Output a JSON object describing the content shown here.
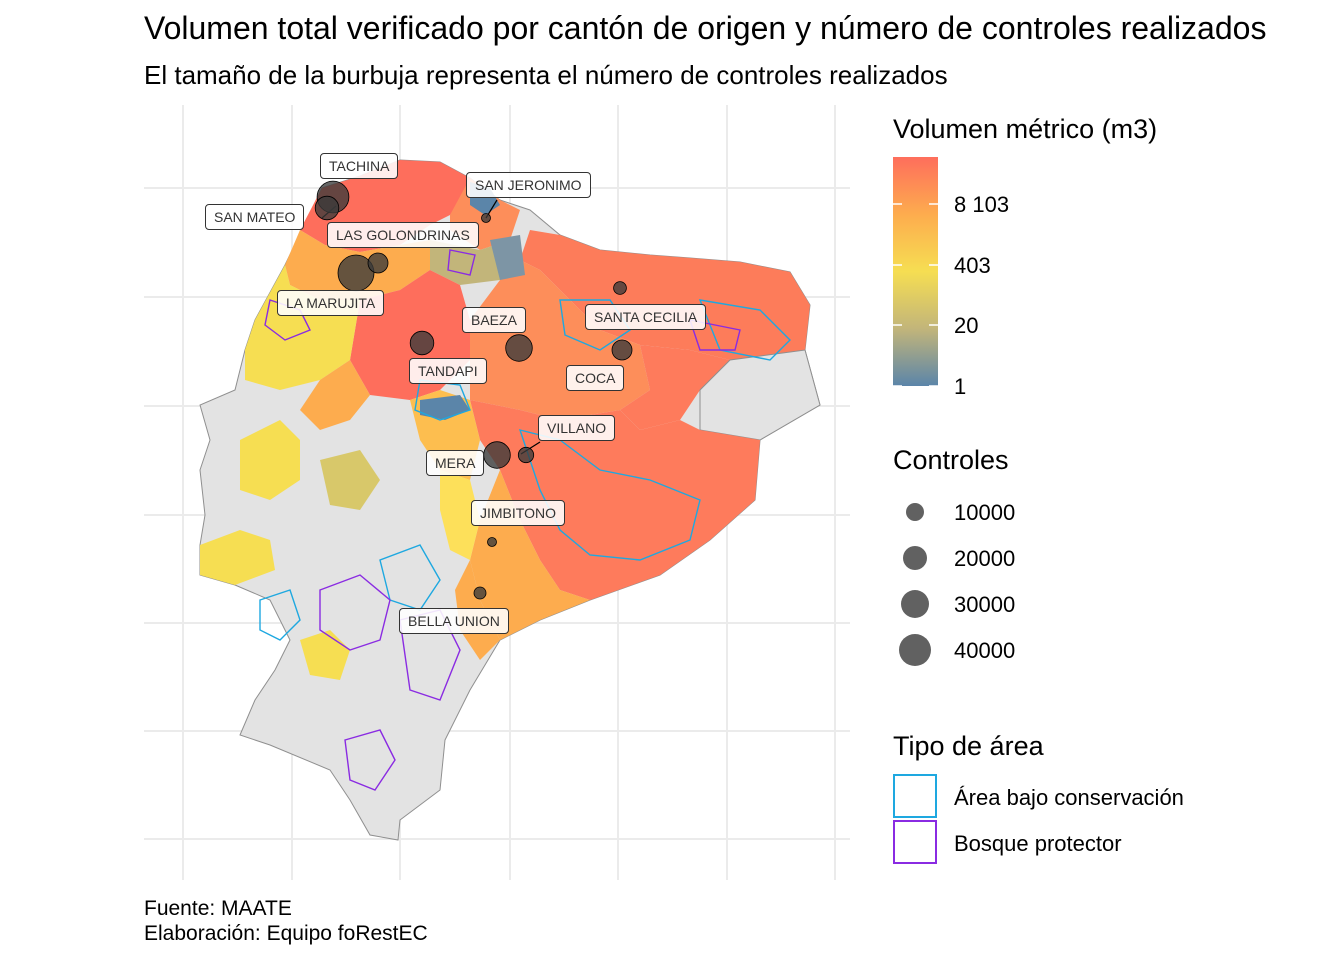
{
  "header": {
    "title": "Volumen total verificado por cantón de origen y número de controles realizados",
    "subtitle": "El tamaño de la burbuja representa el número de controles realizados"
  },
  "caption": {
    "source": "Fuente: MAATE",
    "author": "Elaboración: Equipo foRestEC"
  },
  "map": {
    "country": "Ecuador (continental)",
    "colors": {
      "no_data": "#e3e3e3",
      "background_grid": "#ebebeb",
      "bubble": "#3a3a3a",
      "conservation_border": "#1ea8e0",
      "protector_border": "#8a2be2"
    },
    "locations": [
      {
        "name": "TACHINA",
        "controles": 30000
      },
      {
        "name": "SAN MATEO",
        "controles": 15000
      },
      {
        "name": "SAN JERONIMO",
        "controles": 1000
      },
      {
        "name": "LAS GOLONDRINAS",
        "controles": 40000
      },
      {
        "name": "LA MARUJITA",
        "controles": 10000
      },
      {
        "name": "BAEZA",
        "controles": 20000
      },
      {
        "name": "SANTA CECILIA",
        "controles": 3000
      },
      {
        "name": "TANDAPI",
        "controles": 15000
      },
      {
        "name": "COCA",
        "controles": 10000
      },
      {
        "name": "VILLANO",
        "controles": 5000
      },
      {
        "name": "MERA",
        "controles": 20000
      },
      {
        "name": "JIMBITONO",
        "controles": 1000
      },
      {
        "name": "BELLA UNION",
        "controles": 2500
      }
    ]
  },
  "legend_volume": {
    "title": "Volumen métrico (m3)",
    "scale": "log",
    "colors": [
      "#5b85a9",
      "#c2b57a",
      "#f6de52",
      "#fdac4e",
      "#fe6e5c"
    ],
    "ticks": [
      "8 103",
      "403",
      "20",
      "1"
    ]
  },
  "legend_controls": {
    "title": "Controles",
    "items": [
      {
        "label": "10000",
        "value": 10000
      },
      {
        "label": "20000",
        "value": 20000
      },
      {
        "label": "30000",
        "value": 30000
      },
      {
        "label": "40000",
        "value": 40000
      }
    ]
  },
  "legend_area": {
    "title": "Tipo de área",
    "items": [
      {
        "label": "Área bajo conservación",
        "color": "#1ea8e0"
      },
      {
        "label": "Bosque protector",
        "color": "#8a2be2"
      }
    ]
  }
}
